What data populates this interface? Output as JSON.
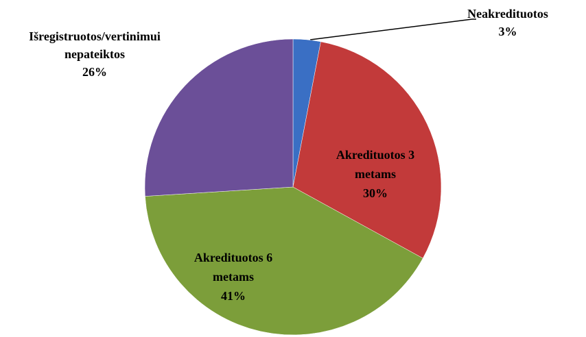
{
  "chart_data": {
    "type": "pie",
    "categories": [
      "Neakredituotos",
      "Akredituotos 3 metams",
      "Akredituotos 6 metams",
      "Išregistruotos/vertinimui nepateiktos"
    ],
    "values": [
      3,
      30,
      41,
      26
    ],
    "value_labels": [
      "3%",
      "30%",
      "41%",
      "26%"
    ],
    "colors": [
      "#3a6fc4",
      "#c23a3a",
      "#7c9e3a",
      "#6b4f98"
    ]
  }
}
